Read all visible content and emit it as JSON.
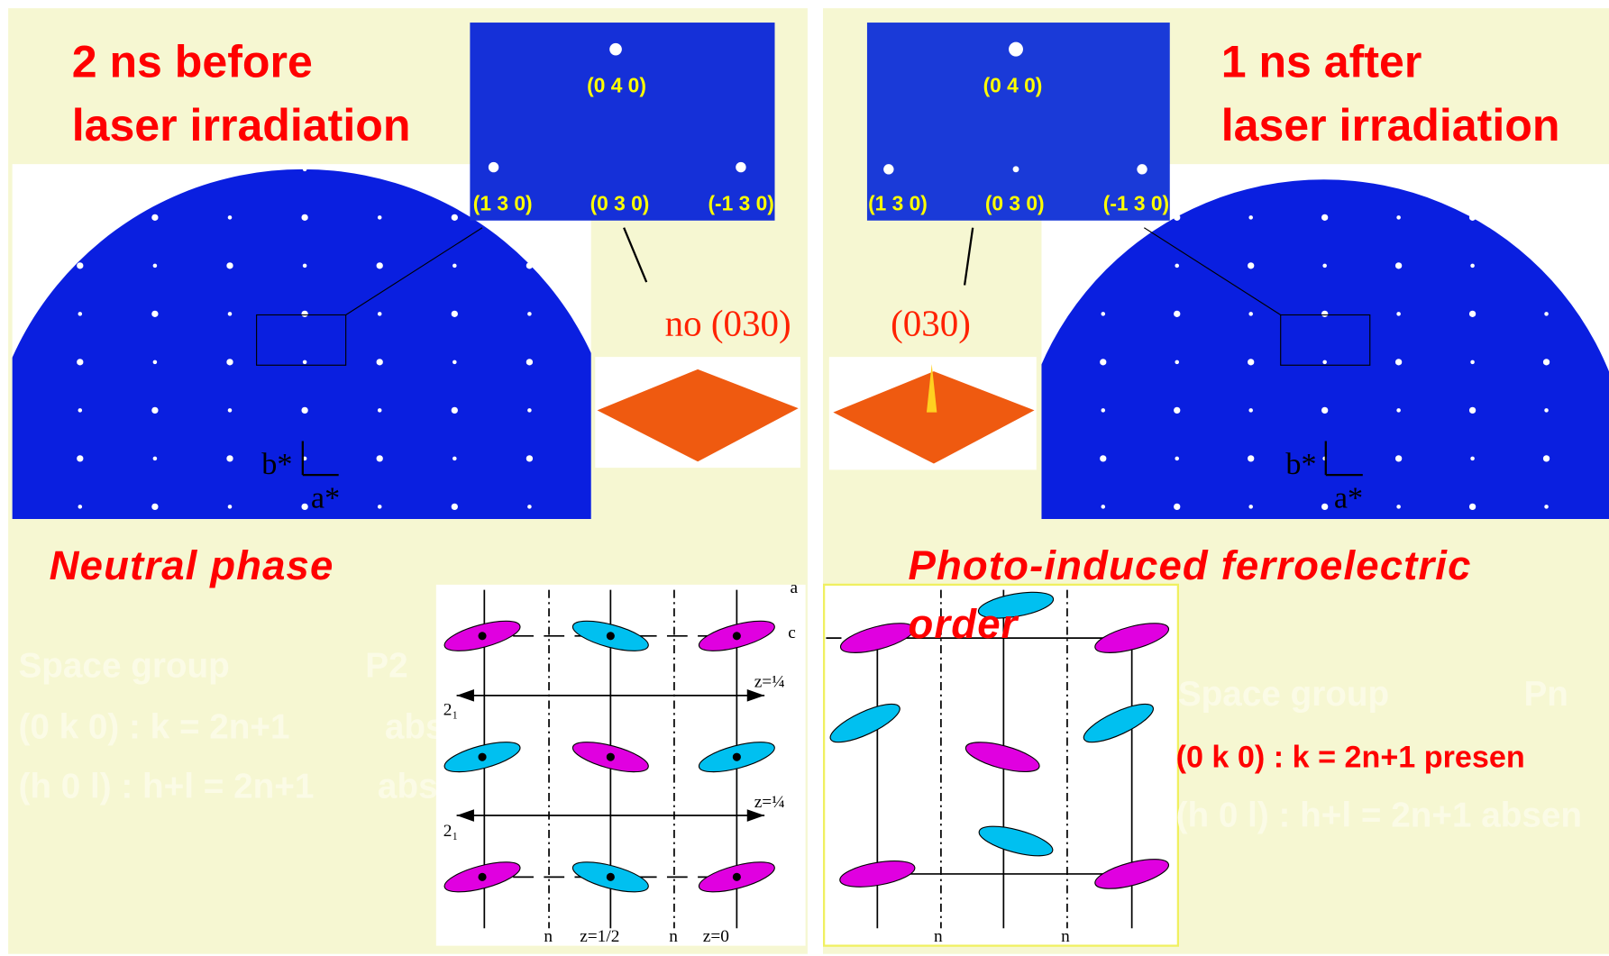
{
  "left": {
    "title": [
      "2 ns before",
      "laser irradiation"
    ],
    "inset_labels": [
      "(0 4 0)",
      "(1 3 0)",
      "(0 3 0)",
      "(-1 3 0)"
    ],
    "annotation": "no (030)",
    "axes": [
      "b*",
      "a*"
    ],
    "phase": "Neutral phase",
    "space_group": [
      "Space group",
      "P2"
    ],
    "rules": [
      "(0 k 0) :  k = 2n+1",
      "abs",
      "(h 0 l) : h+l = 2n+1",
      "abs"
    ],
    "diagram_labels": [
      "a",
      "c",
      "z=¼",
      "2₁",
      "z=¼",
      "2₁",
      "n",
      "z=1/2",
      "n",
      "z=0"
    ]
  },
  "right": {
    "title": [
      "1 ns after",
      "laser irradiation"
    ],
    "inset_labels": [
      "(0 4 0)",
      "(1 3 0)",
      "(0 3 0)",
      "(-1 3 0)"
    ],
    "annotation": "(030)",
    "axes": [
      "b*",
      "a*"
    ],
    "phase": [
      "Photo-induced ferroelectric",
      "order"
    ],
    "space_group": [
      "Space group",
      "Pn"
    ],
    "rules": [
      "(0 k 0) :  k = 2n+1 presen",
      "(h 0 l) : h+l = 2n+1 absen"
    ],
    "diagram_labels": [
      "n",
      "n"
    ]
  }
}
